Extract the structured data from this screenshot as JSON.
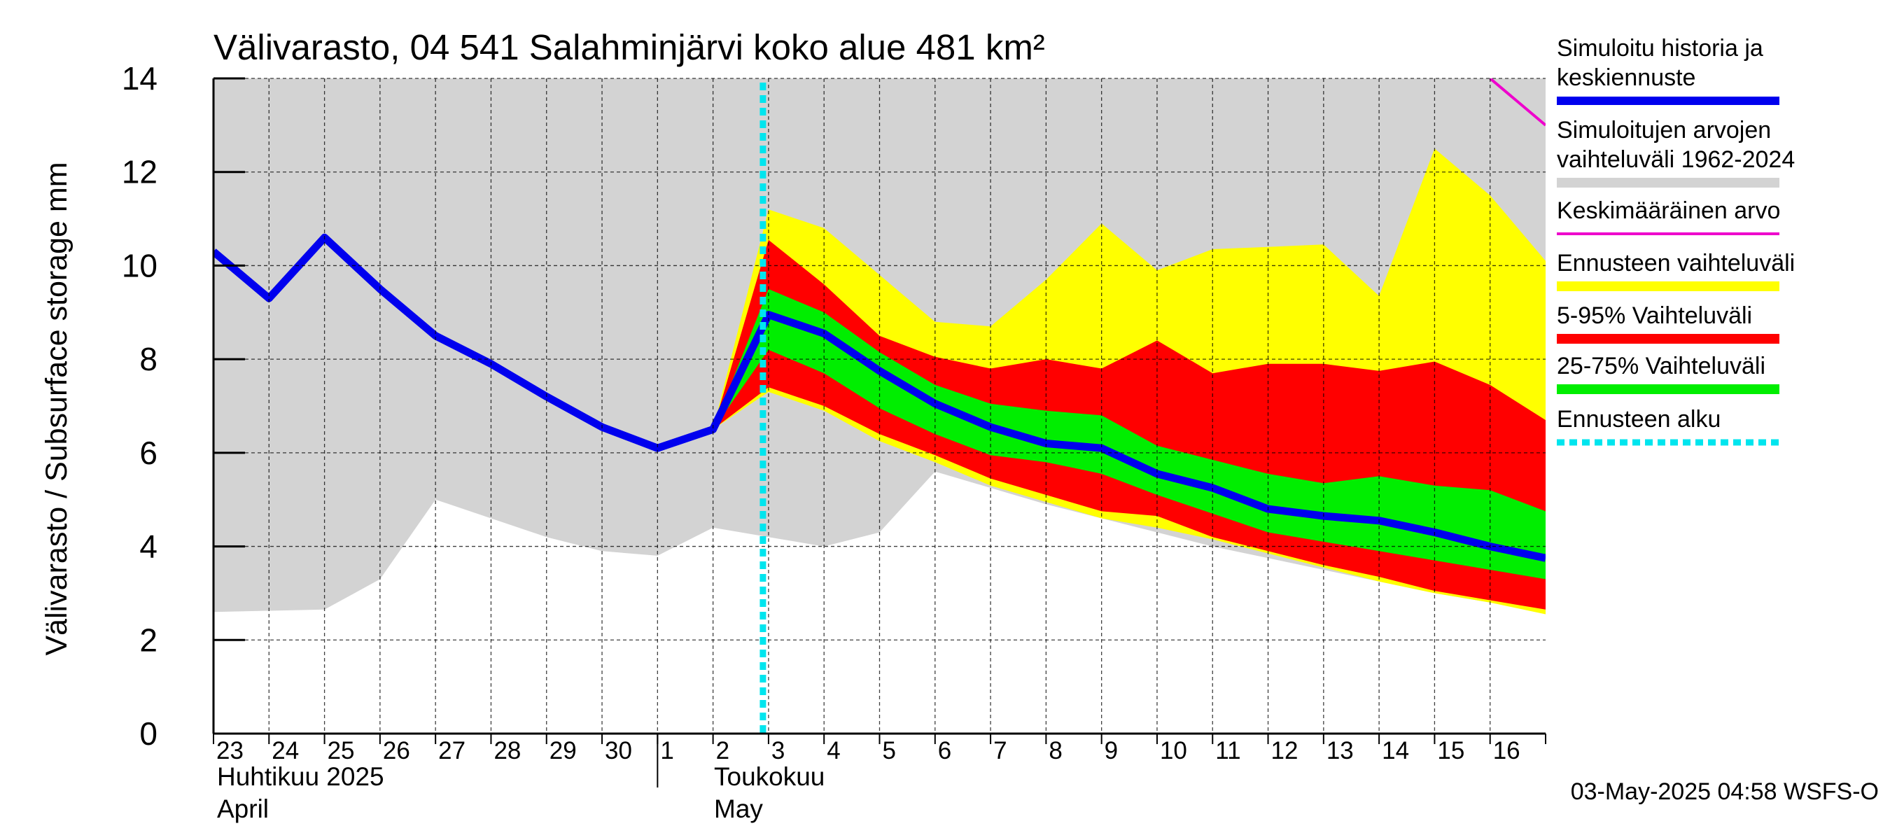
{
  "chart_data": {
    "type": "area",
    "title": "Välivarasto, 04 541 Salahminjärvi koko alue 481 km²",
    "ylabel": "Välivarasto / Subsurface storage  mm",
    "ylim": [
      0,
      14
    ],
    "yticks": [
      0,
      2,
      4,
      6,
      8,
      10,
      12,
      14
    ],
    "xlim": [
      "2025-04-23",
      "2025-05-17"
    ],
    "x_tick_labels": [
      "23",
      "24",
      "25",
      "26",
      "27",
      "28",
      "29",
      "30",
      "1",
      "2",
      "3",
      "4",
      "5",
      "6",
      "7",
      "8",
      "9",
      "10",
      "11",
      "12",
      "13",
      "14",
      "15",
      "16"
    ],
    "month_labels": [
      {
        "fi": "Huhtikuu  2025",
        "en": "April"
      },
      {
        "fi": "Toukokuu",
        "en": "May"
      }
    ],
    "grid": true,
    "legend_position": "right",
    "legend": [
      {
        "label": "Simuloitu historia ja keskiennuste",
        "color": "#0000ee"
      },
      {
        "label": "Simuloitujen arvojen vaihteluväli 1962-2024",
        "color": "#d3d3d3"
      },
      {
        "label": "Keskimääräinen arvo",
        "color": "#ee00cc"
      },
      {
        "label": "Ennusteen vaihteluväli",
        "color": "#ffff00"
      },
      {
        "label": "5-95% Vaihteluväli",
        "color": "#ff0000"
      },
      {
        "label": "25-75% Vaihteluväli",
        "color": "#00ee00"
      },
      {
        "label": "Ennusteen alku",
        "color": "#00e5ee"
      }
    ],
    "forecast_start": "2025-05-03",
    "historical_range": {
      "x": [
        "2025-04-23",
        "2025-04-25",
        "2025-04-26",
        "2025-04-27",
        "2025-04-28",
        "2025-04-29",
        "2025-04-30",
        "2025-05-01",
        "2025-05-02",
        "2025-05-03",
        "2025-05-04",
        "2025-05-05",
        "2025-05-06",
        "2025-05-07",
        "2025-05-08",
        "2025-05-09",
        "2025-05-10",
        "2025-05-11",
        "2025-05-12",
        "2025-05-13",
        "2025-05-14",
        "2025-05-15",
        "2025-05-16",
        "2025-05-17"
      ],
      "low": [
        2.6,
        2.65,
        3.3,
        5.0,
        4.6,
        4.2,
        3.9,
        3.8,
        4.4,
        4.2,
        4.0,
        4.3,
        5.6,
        5.25,
        4.9,
        4.6,
        4.3,
        4.0,
        3.75,
        3.5,
        3.25,
        3.0,
        2.8,
        2.6
      ],
      "high": [
        14,
        14,
        14,
        14,
        14,
        14,
        14,
        14,
        14,
        14,
        14,
        14,
        14,
        14,
        14,
        14,
        14,
        14,
        14,
        14,
        14,
        14,
        14,
        14
      ]
    },
    "mean": {
      "x": [
        "2025-05-16",
        "2025-05-17"
      ],
      "values": [
        14.0,
        13.0
      ]
    },
    "forecast_range": {
      "x": [
        "2025-05-02",
        "2025-05-03",
        "2025-05-04",
        "2025-05-05",
        "2025-05-06",
        "2025-05-07",
        "2025-05-08",
        "2025-05-09",
        "2025-05-10",
        "2025-05-11",
        "2025-05-12",
        "2025-05-13",
        "2025-05-14",
        "2025-05-15",
        "2025-05-16",
        "2025-05-17"
      ],
      "low": [
        6.5,
        7.3,
        6.9,
        6.25,
        5.8,
        5.3,
        4.95,
        4.6,
        4.4,
        4.15,
        3.85,
        3.55,
        3.25,
        3.0,
        2.8,
        2.55
      ],
      "high": [
        6.5,
        11.2,
        10.8,
        9.8,
        8.8,
        8.7,
        9.7,
        10.9,
        9.9,
        10.35,
        10.4,
        10.45,
        9.35,
        12.5,
        11.5,
        10.1
      ]
    },
    "band_5_95": {
      "x": [
        "2025-05-02",
        "2025-05-03",
        "2025-05-04",
        "2025-05-05",
        "2025-05-06",
        "2025-05-07",
        "2025-05-08",
        "2025-05-09",
        "2025-05-10",
        "2025-05-11",
        "2025-05-12",
        "2025-05-13",
        "2025-05-14",
        "2025-05-15",
        "2025-05-16",
        "2025-05-17"
      ],
      "low": [
        6.5,
        7.4,
        7.0,
        6.4,
        5.95,
        5.45,
        5.1,
        4.75,
        4.65,
        4.2,
        3.9,
        3.6,
        3.35,
        3.05,
        2.85,
        2.65
      ],
      "high": [
        6.5,
        10.55,
        9.6,
        8.5,
        8.05,
        7.8,
        8.0,
        7.8,
        8.4,
        7.7,
        7.9,
        7.9,
        7.75,
        7.95,
        7.45,
        6.7
      ]
    },
    "band_25_75": {
      "x": [
        "2025-05-02",
        "2025-05-03",
        "2025-05-04",
        "2025-05-05",
        "2025-05-06",
        "2025-05-07",
        "2025-05-08",
        "2025-05-09",
        "2025-05-10",
        "2025-05-11",
        "2025-05-12",
        "2025-05-13",
        "2025-05-14",
        "2025-05-15",
        "2025-05-16",
        "2025-05-17"
      ],
      "low": [
        6.5,
        8.2,
        7.7,
        6.95,
        6.4,
        5.95,
        5.8,
        5.55,
        5.1,
        4.7,
        4.3,
        4.1,
        3.9,
        3.7,
        3.5,
        3.3
      ],
      "high": [
        6.5,
        9.5,
        9.0,
        8.15,
        7.45,
        7.05,
        6.9,
        6.8,
        6.15,
        5.85,
        5.55,
        5.35,
        5.5,
        5.3,
        5.2,
        4.75
      ]
    },
    "series": [
      {
        "name": "Simuloitu historia ja keskiennuste",
        "x": [
          "2025-04-23",
          "2025-04-24",
          "2025-04-25",
          "2025-04-26",
          "2025-04-27",
          "2025-04-28",
          "2025-04-29",
          "2025-04-30",
          "2025-05-01",
          "2025-05-02",
          "2025-05-03",
          "2025-05-04",
          "2025-05-05",
          "2025-05-06",
          "2025-05-07",
          "2025-05-08",
          "2025-05-09",
          "2025-05-10",
          "2025-05-11",
          "2025-05-12",
          "2025-05-13",
          "2025-05-14",
          "2025-05-15",
          "2025-05-16",
          "2025-05-17"
        ],
        "values": [
          10.3,
          9.3,
          10.6,
          9.5,
          8.5,
          7.9,
          7.2,
          6.55,
          6.1,
          6.5,
          8.95,
          8.55,
          7.75,
          7.05,
          6.55,
          6.2,
          6.1,
          5.55,
          5.25,
          4.8,
          4.65,
          4.55,
          4.3,
          4.0,
          3.75
        ]
      }
    ]
  },
  "footer": {
    "timestamp": "03-May-2025 04:58 WSFS-O"
  }
}
